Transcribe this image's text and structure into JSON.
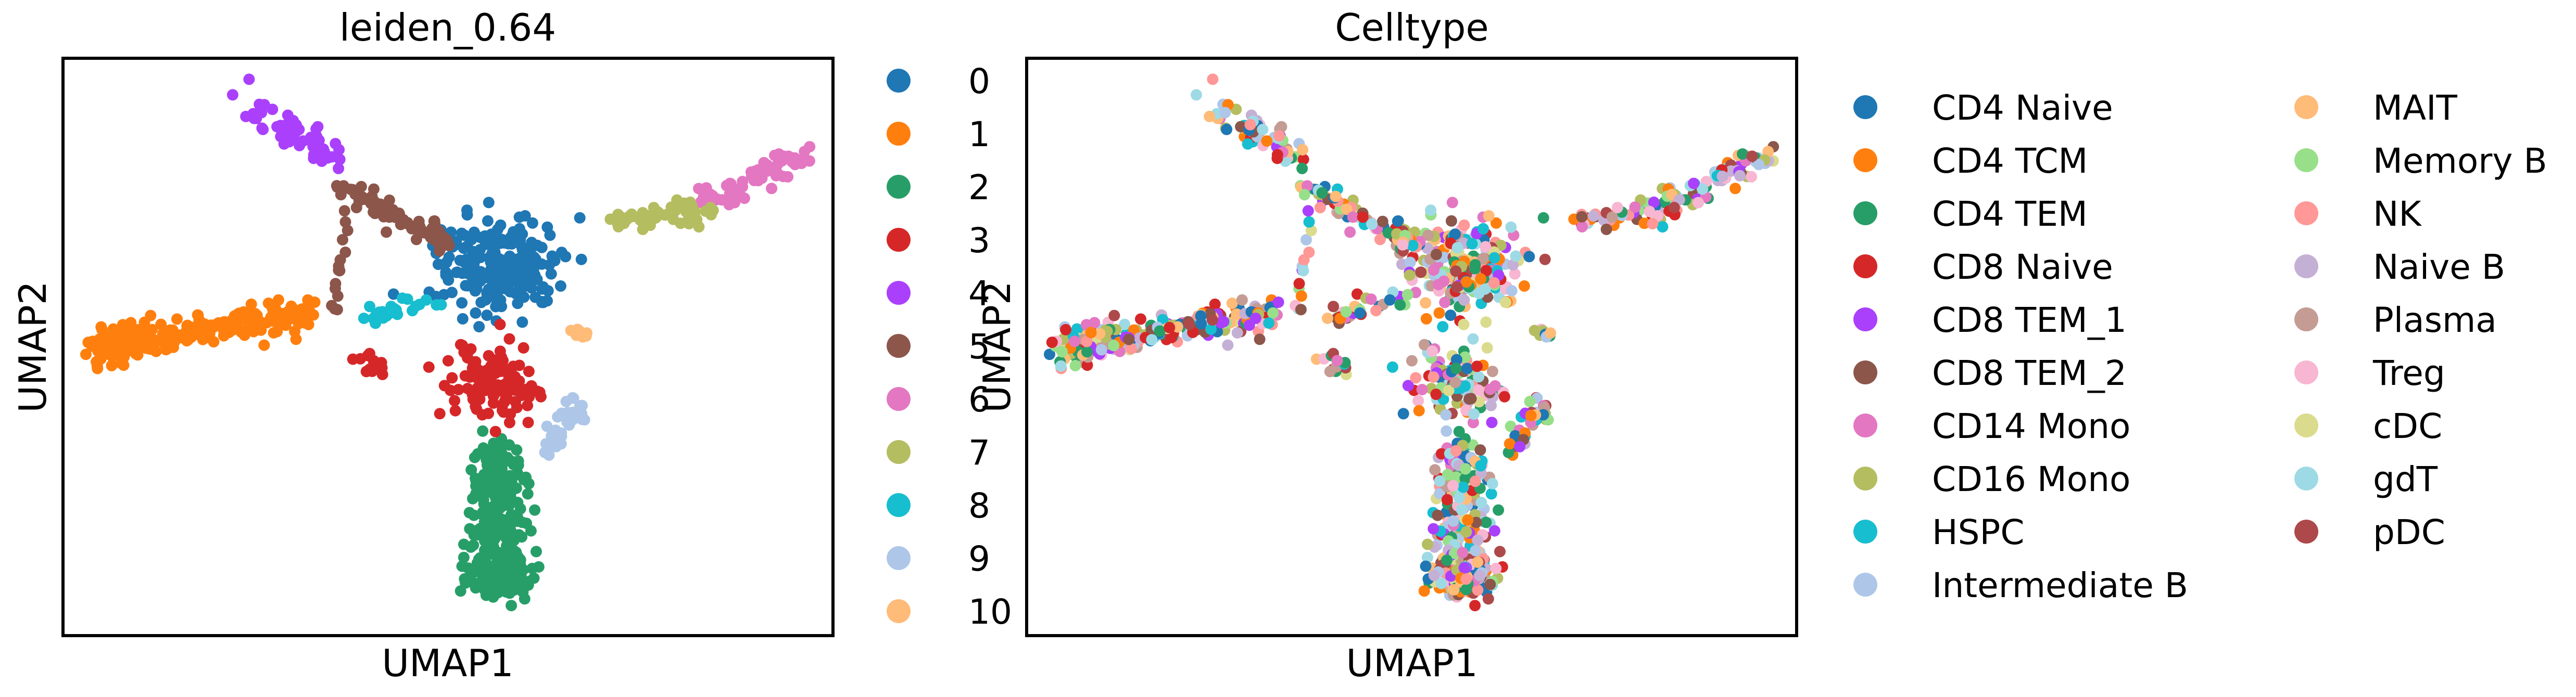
{
  "chart_data": [
    {
      "type": "scatter",
      "title": "leiden_0.64",
      "xlabel": "UMAP1",
      "ylabel": "UMAP2",
      "grid": false,
      "ticks": false,
      "legend_placement": "right",
      "legend": [
        {
          "label": "0",
          "color": "#1f77b4"
        },
        {
          "label": "1",
          "color": "#ff7f0e"
        },
        {
          "label": "2",
          "color": "#279e68"
        },
        {
          "label": "3",
          "color": "#d62728"
        },
        {
          "label": "4",
          "color": "#aa40fc"
        },
        {
          "label": "5",
          "color": "#8c564b"
        },
        {
          "label": "6",
          "color": "#e377c2"
        },
        {
          "label": "7",
          "color": "#b5bd61"
        },
        {
          "label": "8",
          "color": "#17becf"
        },
        {
          "label": "9",
          "color": "#aec7e8"
        },
        {
          "label": "10",
          "color": "#ffbb78"
        }
      ]
    },
    {
      "type": "scatter",
      "title": "Celltype",
      "xlabel": "UMAP1",
      "ylabel": "UMAP2",
      "grid": false,
      "ticks": false,
      "legend_placement": "right",
      "legend": [
        {
          "label": "CD4 Naive",
          "color": "#1f77b4"
        },
        {
          "label": "CD4 TCM",
          "color": "#ff7f0e"
        },
        {
          "label": "CD4 TEM",
          "color": "#279e68"
        },
        {
          "label": "CD8 Naive",
          "color": "#d62728"
        },
        {
          "label": "CD8 TEM_1",
          "color": "#aa40fc"
        },
        {
          "label": "CD8 TEM_2",
          "color": "#8c564b"
        },
        {
          "label": "CD14 Mono",
          "color": "#e377c2"
        },
        {
          "label": "CD16 Mono",
          "color": "#b5bd61"
        },
        {
          "label": "HSPC",
          "color": "#17becf"
        },
        {
          "label": "Intermediate B",
          "color": "#aec7e8"
        },
        {
          "label": "MAIT",
          "color": "#ffbb78"
        },
        {
          "label": "Memory B",
          "color": "#98df8a"
        },
        {
          "label": "NK",
          "color": "#ff9896"
        },
        {
          "label": "Naive B",
          "color": "#c5b0d5"
        },
        {
          "label": "Plasma",
          "color": "#c49c94"
        },
        {
          "label": "Treg",
          "color": "#f7b6d2"
        },
        {
          "label": "cDC",
          "color": "#dbdb8d"
        },
        {
          "label": "gdT",
          "color": "#9edae5"
        },
        {
          "label": "pDC",
          "color": "#ad494a"
        }
      ]
    }
  ]
}
